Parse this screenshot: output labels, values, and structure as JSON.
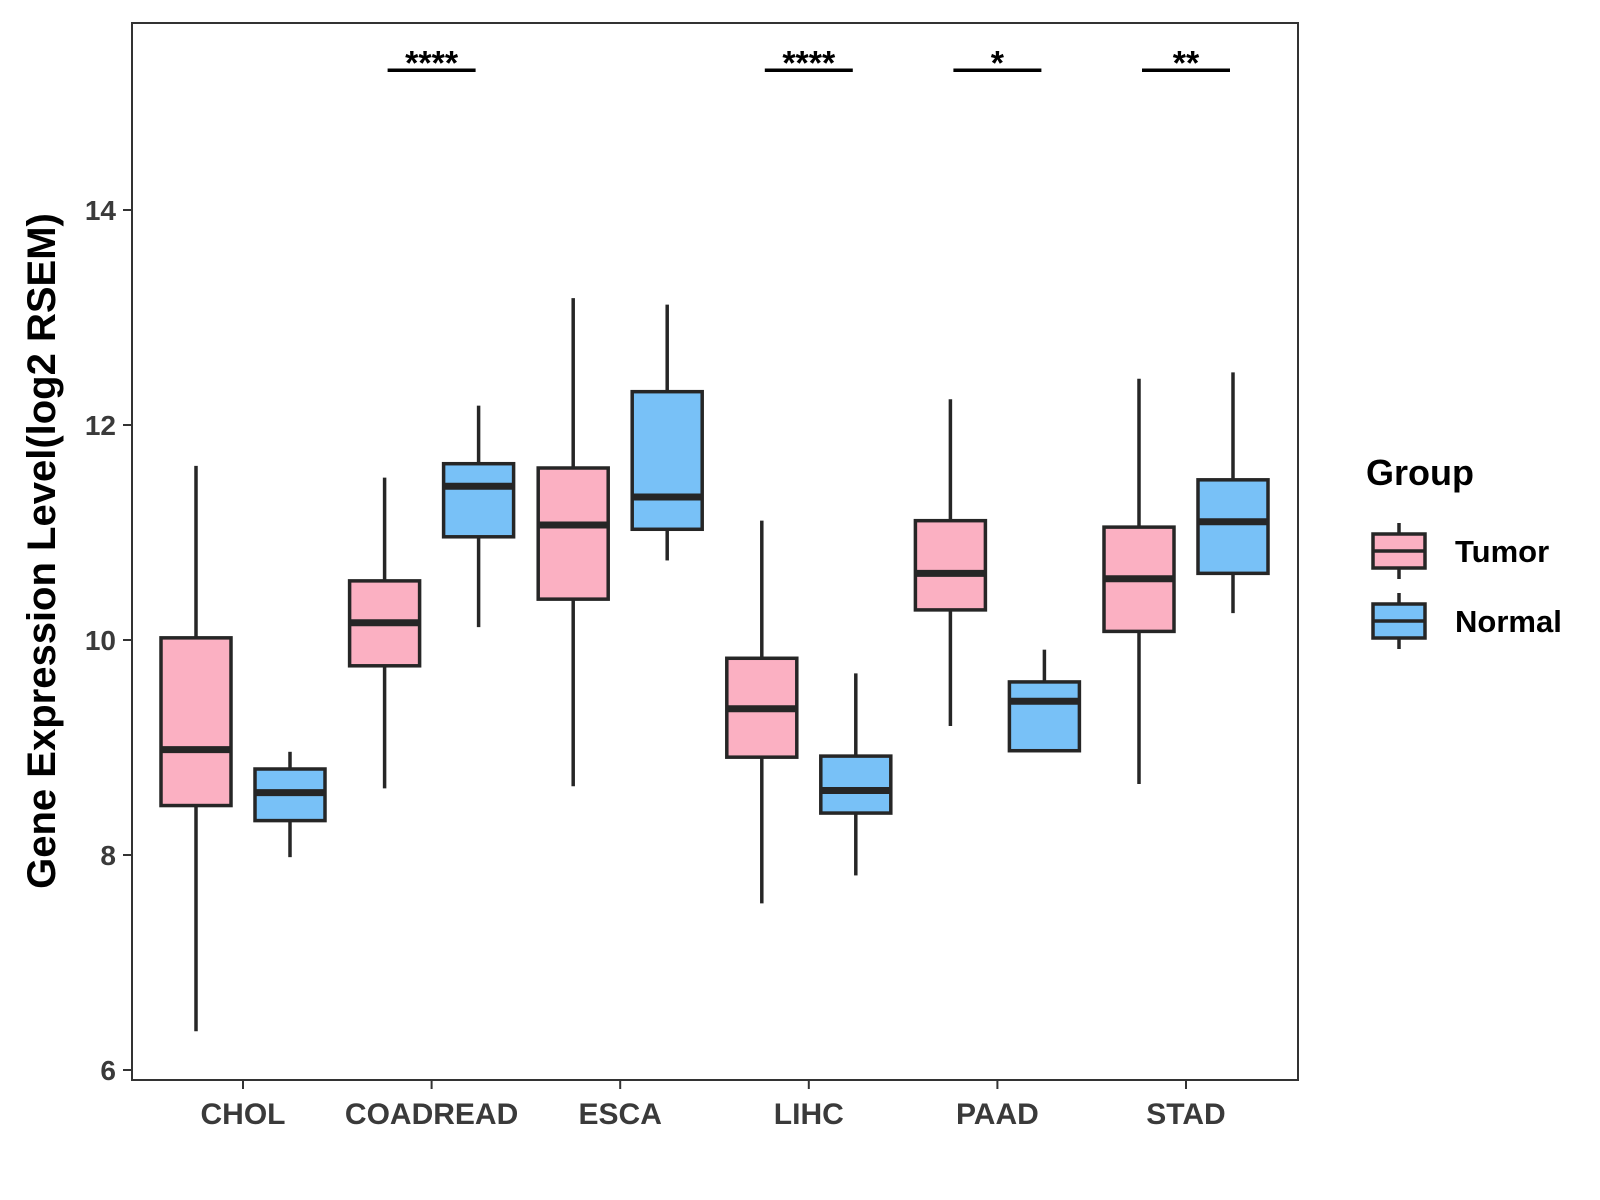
{
  "chart_data": {
    "type": "box",
    "title": "",
    "xlabel": "",
    "ylabel": "Gene Expression Level(log2 RSEM)",
    "ylim": [
      5.9,
      15.8
    ],
    "yticks": [
      6,
      8,
      10,
      12,
      14
    ],
    "categories": [
      "CHOL",
      "COADREAD",
      "ESCA",
      "LIHC",
      "PAAD",
      "STAD"
    ],
    "legend": {
      "title": "Group",
      "position": "right",
      "items": [
        {
          "name": "Tumor",
          "color": "#fbb0c2"
        },
        {
          "name": "Normal",
          "color": "#78c1f7"
        }
      ]
    },
    "series": [
      {
        "name": "Tumor",
        "color": "#fbb0c2",
        "boxes": [
          {
            "category": "CHOL",
            "min": 6.36,
            "q1": 8.46,
            "median": 8.98,
            "q3": 10.02,
            "max": 11.62
          },
          {
            "category": "COADREAD",
            "min": 8.62,
            "q1": 9.76,
            "median": 10.16,
            "q3": 10.55,
            "max": 11.51
          },
          {
            "category": "ESCA",
            "min": 8.64,
            "q1": 10.38,
            "median": 11.07,
            "q3": 11.6,
            "max": 13.18
          },
          {
            "category": "LIHC",
            "min": 7.55,
            "q1": 8.91,
            "median": 9.36,
            "q3": 9.83,
            "max": 11.11
          },
          {
            "category": "PAAD",
            "min": 9.2,
            "q1": 10.28,
            "median": 10.62,
            "q3": 11.11,
            "max": 12.24
          },
          {
            "category": "STAD",
            "min": 8.66,
            "q1": 10.08,
            "median": 10.57,
            "q3": 11.05,
            "max": 12.43
          }
        ]
      },
      {
        "name": "Normal",
        "color": "#78c1f7",
        "boxes": [
          {
            "category": "CHOL",
            "min": 7.98,
            "q1": 8.32,
            "median": 8.58,
            "q3": 8.8,
            "max": 8.96
          },
          {
            "category": "COADREAD",
            "min": 10.12,
            "q1": 10.96,
            "median": 11.43,
            "q3": 11.64,
            "max": 12.18
          },
          {
            "category": "ESCA",
            "min": 10.74,
            "q1": 11.03,
            "median": 11.33,
            "q3": 12.31,
            "max": 13.12
          },
          {
            "category": "LIHC",
            "min": 7.81,
            "q1": 8.39,
            "median": 8.6,
            "q3": 8.92,
            "max": 9.69
          },
          {
            "category": "PAAD",
            "min": 8.97,
            "q1": 8.97,
            "median": 9.43,
            "q3": 9.61,
            "max": 9.91
          },
          {
            "category": "STAD",
            "min": 10.25,
            "q1": 10.62,
            "median": 11.1,
            "q3": 11.49,
            "max": 12.49
          }
        ]
      }
    ],
    "significance": [
      {
        "category": "COADREAD",
        "label": "****",
        "y": 15.3
      },
      {
        "category": "LIHC",
        "label": "****",
        "y": 15.3
      },
      {
        "category": "PAAD",
        "label": "*",
        "y": 15.3
      },
      {
        "category": "STAD",
        "label": "**",
        "y": 15.3
      }
    ]
  }
}
